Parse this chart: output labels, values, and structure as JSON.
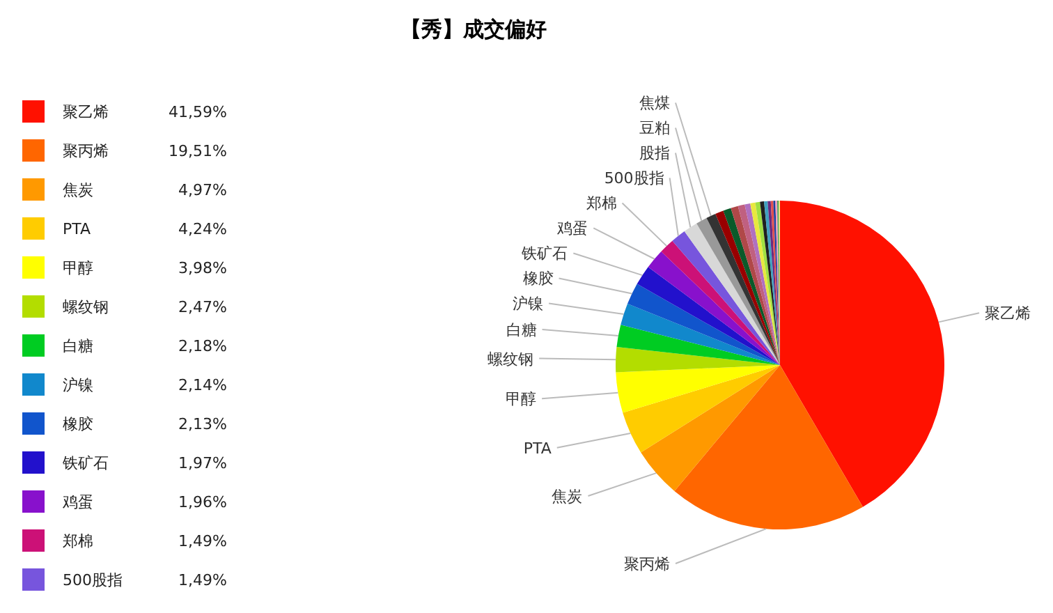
{
  "chart_data": {
    "type": "pie",
    "title": "【秀】成交偏好",
    "categories": [
      "聚乙烯",
      "聚丙烯",
      "焦炭",
      "PTA",
      "甲醇",
      "螺纹钢",
      "白糖",
      "沪镍",
      "橡胶",
      "铁矿石",
      "鸡蛋",
      "郑棉",
      "500股指",
      "股指",
      "豆粕",
      "焦煤",
      null,
      null,
      null,
      null,
      null,
      null,
      null,
      null,
      null,
      null,
      null,
      null,
      null,
      null,
      null
    ],
    "values": [
      41.59,
      19.51,
      4.97,
      4.24,
      3.98,
      2.47,
      2.18,
      2.14,
      2.13,
      1.97,
      1.96,
      1.49,
      1.49,
      1.4,
      1.1,
      0.95,
      0.82,
      0.77,
      0.72,
      0.67,
      0.55,
      0.5,
      0.45,
      0.4,
      0.35,
      0.3,
      0.25,
      0.2,
      0.18,
      0.15,
      0.12
    ],
    "colors": [
      "#ff1100",
      "#ff6600",
      "#ff9900",
      "#ffcc00",
      "#ffff00",
      "#b3dd00",
      "#00cc22",
      "#1188cc",
      "#1155cc",
      "#2211cc",
      "#8811cc",
      "#cc1177",
      "#7755dd",
      "#d8d8d8",
      "#999999",
      "#333333",
      "#990000",
      "#0a5a2a",
      "#b04848",
      "#c06080",
      "#b070c0",
      "#e8e840",
      "#a0e040",
      "#202020",
      "#40a0c0",
      "#6a2a80",
      "#e05050",
      "#2040a0",
      "#f0a0c0",
      "#50a050",
      "#f0f080"
    ],
    "value_labels": [
      "41,59%",
      "19,51%",
      "4,97%",
      "4,24%",
      "3,98%",
      "2,47%",
      "2,18%",
      "2,14%",
      "2,13%",
      "1,97%",
      "1,96%",
      "1,49%",
      "1,49%",
      null,
      null,
      null,
      null,
      null,
      null,
      null,
      null,
      null,
      null,
      null,
      null,
      null,
      null,
      null,
      null,
      null,
      null
    ],
    "legend": "left"
  }
}
